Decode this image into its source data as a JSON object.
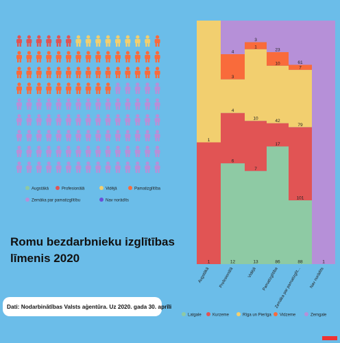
{
  "pictogram": {
    "categories": [
      "Augstākā",
      "Profesionālā",
      "Vidējā",
      "Pamatizglītība",
      "Zemāka par pamatizglītību",
      "Nav norādīts"
    ],
    "colors": [
      "#8ecaa4",
      "#e15454",
      "#f2cf6f",
      "#f96b3b",
      "#b690d8",
      "#6a4fd8"
    ],
    "counts": [
      0,
      6,
      8,
      41,
      80,
      0
    ]
  },
  "title": "Romu bezdarbnieku izglītības līmenis 2020",
  "source": "Dati: Nodarbinātības Valsts aģentūra. Uz 2020. gada 30. aprīli",
  "chart_data": {
    "type": "stacked_bar_100",
    "categories": [
      "Augstākā",
      "Profesionālā",
      "Vidējā",
      "Pamatizglītība",
      "Zemāka par pamatizglīt...",
      "Nav norādīts"
    ],
    "series": [
      {
        "name": "Latgale",
        "color": "#8ecaa4",
        "values": [
          null,
          12,
          13,
          86,
          88,
          null
        ]
      },
      {
        "name": "Kurzeme",
        "color": "#e15454",
        "values": [
          1,
          6,
          7,
          17,
          101,
          null
        ]
      },
      {
        "name": "Rīga un Pierīga",
        "color": "#f2cf6f",
        "values": [
          1,
          4,
          10,
          42,
          79,
          null
        ]
      },
      {
        "name": "Vidzeme",
        "color": "#f96b3b",
        "values": [
          null,
          3,
          1,
          10,
          7,
          null
        ]
      },
      {
        "name": "Zemgale",
        "color": "#b690d8",
        "values": [
          null,
          4,
          3,
          23,
          61,
          1
        ]
      }
    ]
  }
}
